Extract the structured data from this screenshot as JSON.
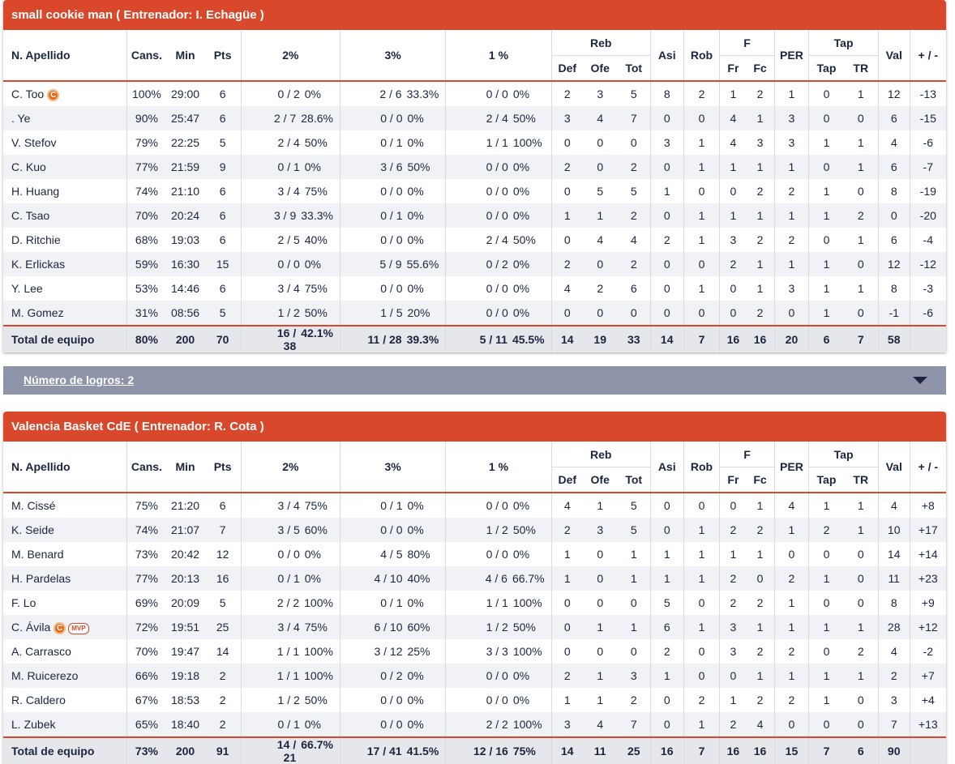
{
  "columns": {
    "player": "N. Apellido",
    "cans": "Cans.",
    "min": "Min",
    "pts": "Pts",
    "p2": "2%",
    "p3": "3%",
    "p1": "1 %",
    "reb": "Reb",
    "def": "Def",
    "ofe": "Ofe",
    "tot": "Tot",
    "asi": "Asi",
    "rob": "Rob",
    "f": "F",
    "fr": "Fr",
    "fc": "Fc",
    "per": "PER",
    "tap": "Tap",
    "tap_sub": "Tap",
    "tr": "TR",
    "val": "Val",
    "pm": "+ / -"
  },
  "badges": {
    "captain": "C",
    "mvp": "MVP"
  },
  "logros": {
    "label": "Número de logros: 2",
    "icon": "chevron-down-icon"
  },
  "colors": {
    "accent": "#d9482b",
    "logros_bar": "#8f94ab",
    "text": "#1a2540"
  },
  "teams": [
    {
      "header": "small cookie man ( Entrenador: I. Echagüe )",
      "players": [
        {
          "name": "C. Too",
          "captain": true,
          "mvp": false,
          "cans": "100%",
          "min": "29:00",
          "pts": "6",
          "p2a": "0 / 2",
          "p2b": "0%",
          "p3a": "2 / 6",
          "p3b": "33.3%",
          "p1a": "0 / 0",
          "p1b": "0%",
          "def": "2",
          "ofe": "3",
          "tot": "5",
          "asi": "8",
          "rob": "2",
          "fr": "1",
          "fc": "2",
          "per": "1",
          "tap": "0",
          "tr": "1",
          "val": "12",
          "pm": "-13"
        },
        {
          "name": ". Ye",
          "captain": false,
          "mvp": false,
          "cans": "90%",
          "min": "25:47",
          "pts": "6",
          "p2a": "2 / 7",
          "p2b": "28.6%",
          "p3a": "0 / 0",
          "p3b": "0%",
          "p1a": "2 / 4",
          "p1b": "50%",
          "def": "3",
          "ofe": "4",
          "tot": "7",
          "asi": "0",
          "rob": "0",
          "fr": "4",
          "fc": "1",
          "per": "3",
          "tap": "0",
          "tr": "0",
          "val": "6",
          "pm": "-15"
        },
        {
          "name": "V. Stefov",
          "captain": false,
          "mvp": false,
          "cans": "79%",
          "min": "22:25",
          "pts": "5",
          "p2a": "2 / 4",
          "p2b": "50%",
          "p3a": "0 / 1",
          "p3b": "0%",
          "p1a": "1 / 1",
          "p1b": "100%",
          "def": "0",
          "ofe": "0",
          "tot": "0",
          "asi": "3",
          "rob": "1",
          "fr": "4",
          "fc": "3",
          "per": "3",
          "tap": "1",
          "tr": "1",
          "val": "4",
          "pm": "-6"
        },
        {
          "name": "C. Kuo",
          "captain": false,
          "mvp": false,
          "cans": "77%",
          "min": "21:59",
          "pts": "9",
          "p2a": "0 / 1",
          "p2b": "0%",
          "p3a": "3 / 6",
          "p3b": "50%",
          "p1a": "0 / 0",
          "p1b": "0%",
          "def": "2",
          "ofe": "0",
          "tot": "2",
          "asi": "0",
          "rob": "1",
          "fr": "1",
          "fc": "1",
          "per": "1",
          "tap": "0",
          "tr": "1",
          "val": "6",
          "pm": "-7"
        },
        {
          "name": "H. Huang",
          "captain": false,
          "mvp": false,
          "cans": "74%",
          "min": "21:10",
          "pts": "6",
          "p2a": "3 / 4",
          "p2b": "75%",
          "p3a": "0 / 0",
          "p3b": "0%",
          "p1a": "0 / 0",
          "p1b": "0%",
          "def": "0",
          "ofe": "5",
          "tot": "5",
          "asi": "1",
          "rob": "0",
          "fr": "0",
          "fc": "2",
          "per": "2",
          "tap": "1",
          "tr": "0",
          "val": "8",
          "pm": "-19"
        },
        {
          "name": "C. Tsao",
          "captain": false,
          "mvp": false,
          "cans": "70%",
          "min": "20:24",
          "pts": "6",
          "p2a": "3 / 9",
          "p2b": "33.3%",
          "p3a": "0 / 1",
          "p3b": "0%",
          "p1a": "0 / 0",
          "p1b": "0%",
          "def": "1",
          "ofe": "1",
          "tot": "2",
          "asi": "0",
          "rob": "1",
          "fr": "1",
          "fc": "1",
          "per": "1",
          "tap": "1",
          "tr": "2",
          "val": "0",
          "pm": "-20"
        },
        {
          "name": "D. Ritchie",
          "captain": false,
          "mvp": false,
          "cans": "68%",
          "min": "19:03",
          "pts": "6",
          "p2a": "2 / 5",
          "p2b": "40%",
          "p3a": "0 / 0",
          "p3b": "0%",
          "p1a": "2 / 4",
          "p1b": "50%",
          "def": "0",
          "ofe": "4",
          "tot": "4",
          "asi": "2",
          "rob": "1",
          "fr": "3",
          "fc": "2",
          "per": "2",
          "tap": "0",
          "tr": "1",
          "val": "6",
          "pm": "-4"
        },
        {
          "name": "K. Erlickas",
          "captain": false,
          "mvp": false,
          "cans": "59%",
          "min": "16:30",
          "pts": "15",
          "p2a": "0 / 0",
          "p2b": "0%",
          "p3a": "5 / 9",
          "p3b": "55.6%",
          "p1a": "0 / 2",
          "p1b": "0%",
          "def": "2",
          "ofe": "0",
          "tot": "2",
          "asi": "0",
          "rob": "0",
          "fr": "2",
          "fc": "1",
          "per": "1",
          "tap": "1",
          "tr": "0",
          "val": "12",
          "pm": "-12"
        },
        {
          "name": "Y. Lee",
          "captain": false,
          "mvp": false,
          "cans": "53%",
          "min": "14:46",
          "pts": "6",
          "p2a": "3 / 4",
          "p2b": "75%",
          "p3a": "0 / 0",
          "p3b": "0%",
          "p1a": "0 / 0",
          "p1b": "0%",
          "def": "4",
          "ofe": "2",
          "tot": "6",
          "asi": "0",
          "rob": "1",
          "fr": "0",
          "fc": "1",
          "per": "3",
          "tap": "1",
          "tr": "1",
          "val": "8",
          "pm": "-3"
        },
        {
          "name": "M. Gomez",
          "captain": false,
          "mvp": false,
          "cans": "31%",
          "min": "08:56",
          "pts": "5",
          "p2a": "1 / 2",
          "p2b": "50%",
          "p3a": "1 / 5",
          "p3b": "20%",
          "p1a": "0 / 0",
          "p1b": "0%",
          "def": "0",
          "ofe": "0",
          "tot": "0",
          "asi": "0",
          "rob": "0",
          "fr": "0",
          "fc": "2",
          "per": "0",
          "tap": "1",
          "tr": "0",
          "val": "-1",
          "pm": "-6"
        }
      ],
      "total": {
        "label": "Total de equipo",
        "cans": "80%",
        "min": "200",
        "pts": "70",
        "p2a": "16 / 38",
        "p2b": "42.1%",
        "p3a": "11 / 28",
        "p3b": "39.3%",
        "p1a": "5 / 11",
        "p1b": "45.5%",
        "def": "14",
        "ofe": "19",
        "tot": "33",
        "asi": "14",
        "rob": "7",
        "fr": "16",
        "fc": "16",
        "per": "20",
        "tap": "6",
        "tr": "7",
        "val": "58",
        "pm": ""
      }
    },
    {
      "header": "Valencia Basket CdE ( Entrenador: R. Cota )",
      "players": [
        {
          "name": "M. Cissé",
          "captain": false,
          "mvp": false,
          "cans": "75%",
          "min": "21:20",
          "pts": "6",
          "p2a": "3 / 4",
          "p2b": "75%",
          "p3a": "0 / 1",
          "p3b": "0%",
          "p1a": "0 / 0",
          "p1b": "0%",
          "def": "4",
          "ofe": "1",
          "tot": "5",
          "asi": "0",
          "rob": "0",
          "fr": "0",
          "fc": "1",
          "per": "4",
          "tap": "1",
          "tr": "1",
          "val": "4",
          "pm": "+8"
        },
        {
          "name": "K. Seide",
          "captain": false,
          "mvp": false,
          "cans": "74%",
          "min": "21:07",
          "pts": "7",
          "p2a": "3 / 5",
          "p2b": "60%",
          "p3a": "0 / 0",
          "p3b": "0%",
          "p1a": "1 / 2",
          "p1b": "50%",
          "def": "2",
          "ofe": "3",
          "tot": "5",
          "asi": "0",
          "rob": "1",
          "fr": "2",
          "fc": "2",
          "per": "1",
          "tap": "2",
          "tr": "1",
          "val": "10",
          "pm": "+17"
        },
        {
          "name": "M. Benard",
          "captain": false,
          "mvp": false,
          "cans": "73%",
          "min": "20:42",
          "pts": "12",
          "p2a": "0 / 0",
          "p2b": "0%",
          "p3a": "4 / 5",
          "p3b": "80%",
          "p1a": "0 / 0",
          "p1b": "0%",
          "def": "1",
          "ofe": "0",
          "tot": "1",
          "asi": "1",
          "rob": "1",
          "fr": "1",
          "fc": "1",
          "per": "0",
          "tap": "0",
          "tr": "0",
          "val": "14",
          "pm": "+14"
        },
        {
          "name": "H. Pardelas",
          "captain": false,
          "mvp": false,
          "cans": "77%",
          "min": "20:13",
          "pts": "16",
          "p2a": "0 / 1",
          "p2b": "0%",
          "p3a": "4 / 10",
          "p3b": "40%",
          "p1a": "4 / 6",
          "p1b": "66.7%",
          "def": "1",
          "ofe": "0",
          "tot": "1",
          "asi": "1",
          "rob": "1",
          "fr": "2",
          "fc": "0",
          "per": "2",
          "tap": "1",
          "tr": "0",
          "val": "11",
          "pm": "+23"
        },
        {
          "name": "F. Lo",
          "captain": false,
          "mvp": false,
          "cans": "69%",
          "min": "20:09",
          "pts": "5",
          "p2a": "2 / 2",
          "p2b": "100%",
          "p3a": "0 / 1",
          "p3b": "0%",
          "p1a": "1 / 1",
          "p1b": "100%",
          "def": "0",
          "ofe": "0",
          "tot": "0",
          "asi": "5",
          "rob": "0",
          "fr": "2",
          "fc": "2",
          "per": "1",
          "tap": "0",
          "tr": "0",
          "val": "8",
          "pm": "+9"
        },
        {
          "name": "C. Ávila",
          "captain": true,
          "mvp": true,
          "cans": "72%",
          "min": "19:51",
          "pts": "25",
          "p2a": "3 / 4",
          "p2b": "75%",
          "p3a": "6 / 10",
          "p3b": "60%",
          "p1a": "1 / 2",
          "p1b": "50%",
          "def": "0",
          "ofe": "1",
          "tot": "1",
          "asi": "6",
          "rob": "1",
          "fr": "3",
          "fc": "1",
          "per": "1",
          "tap": "1",
          "tr": "1",
          "val": "28",
          "pm": "+12"
        },
        {
          "name": "A. Carrasco",
          "captain": false,
          "mvp": false,
          "cans": "70%",
          "min": "19:47",
          "pts": "14",
          "p2a": "1 / 1",
          "p2b": "100%",
          "p3a": "3 / 12",
          "p3b": "25%",
          "p1a": "3 / 3",
          "p1b": "100%",
          "def": "0",
          "ofe": "0",
          "tot": "0",
          "asi": "2",
          "rob": "0",
          "fr": "3",
          "fc": "2",
          "per": "2",
          "tap": "0",
          "tr": "2",
          "val": "4",
          "pm": "-2"
        },
        {
          "name": "M. Ruicerezo",
          "captain": false,
          "mvp": false,
          "cans": "66%",
          "min": "19:18",
          "pts": "2",
          "p2a": "1 / 1",
          "p2b": "100%",
          "p3a": "0 / 2",
          "p3b": "0%",
          "p1a": "0 / 0",
          "p1b": "0%",
          "def": "2",
          "ofe": "1",
          "tot": "3",
          "asi": "1",
          "rob": "0",
          "fr": "0",
          "fc": "1",
          "per": "1",
          "tap": "1",
          "tr": "1",
          "val": "2",
          "pm": "+7"
        },
        {
          "name": "R. Caldero",
          "captain": false,
          "mvp": false,
          "cans": "67%",
          "min": "18:53",
          "pts": "2",
          "p2a": "1 / 2",
          "p2b": "50%",
          "p3a": "0 / 0",
          "p3b": "0%",
          "p1a": "0 / 0",
          "p1b": "0%",
          "def": "1",
          "ofe": "1",
          "tot": "2",
          "asi": "0",
          "rob": "2",
          "fr": "1",
          "fc": "2",
          "per": "2",
          "tap": "1",
          "tr": "0",
          "val": "3",
          "pm": "+4"
        },
        {
          "name": "L. Zubek",
          "captain": false,
          "mvp": false,
          "cans": "65%",
          "min": "18:40",
          "pts": "2",
          "p2a": "0 / 1",
          "p2b": "0%",
          "p3a": "0 / 0",
          "p3b": "0%",
          "p1a": "2 / 2",
          "p1b": "100%",
          "def": "3",
          "ofe": "4",
          "tot": "7",
          "asi": "0",
          "rob": "1",
          "fr": "2",
          "fc": "4",
          "per": "0",
          "tap": "0",
          "tr": "0",
          "val": "7",
          "pm": "+13"
        }
      ],
      "total": {
        "label": "Total de equipo",
        "cans": "73%",
        "min": "200",
        "pts": "91",
        "p2a": "14 / 21",
        "p2b": "66.7%",
        "p3a": "17 / 41",
        "p3b": "41.5%",
        "p1a": "12 / 16",
        "p1b": "75%",
        "def": "14",
        "ofe": "11",
        "tot": "25",
        "asi": "16",
        "rob": "7",
        "fr": "16",
        "fc": "16",
        "per": "15",
        "tap": "7",
        "tr": "6",
        "val": "90",
        "pm": ""
      }
    }
  ]
}
